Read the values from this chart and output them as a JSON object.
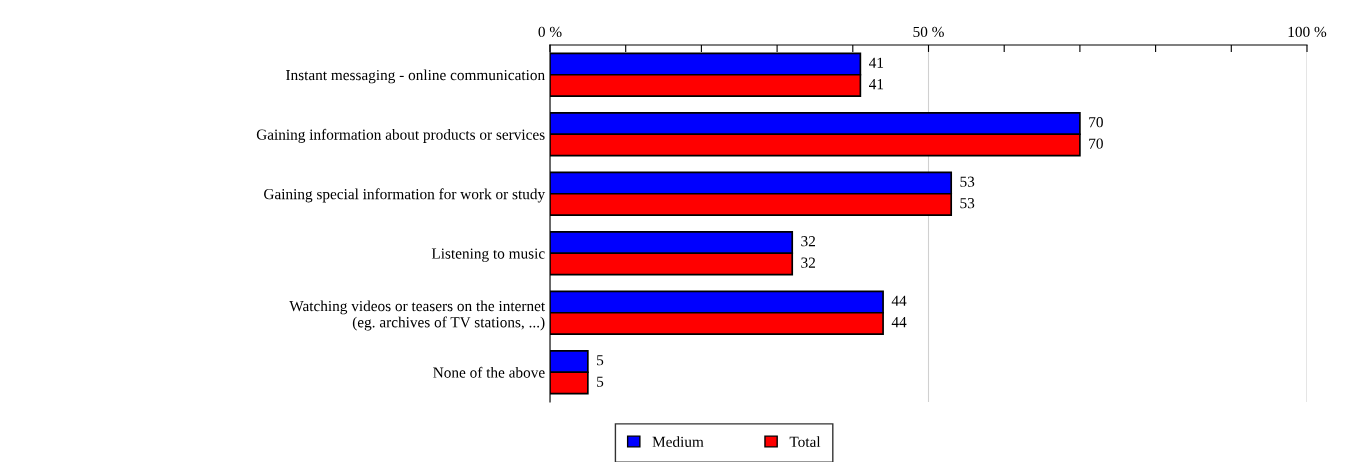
{
  "chart_data": {
    "type": "bar",
    "orientation": "horizontal",
    "categories": [
      "Instant messaging - online communication",
      "Gaining information about products or services",
      "Gaining special information for work or study",
      "Listening to music",
      "Watching videos or teasers on the internet\n(eg. archives of TV stations, ...)",
      "None of the above"
    ],
    "series": [
      {
        "name": "Medium",
        "color": "#0000ff",
        "values": [
          41,
          70,
          53,
          32,
          44,
          5
        ]
      },
      {
        "name": "Total",
        "color": "#ff0000",
        "values": [
          41,
          70,
          53,
          32,
          44,
          5
        ]
      }
    ],
    "xlim": [
      0,
      100
    ],
    "xticks": [
      {
        "value": 0,
        "label": "0 %"
      },
      {
        "value": 10,
        "label": null
      },
      {
        "value": 20,
        "label": null
      },
      {
        "value": 30,
        "label": null
      },
      {
        "value": 40,
        "label": null
      },
      {
        "value": 50,
        "label": "50 %"
      },
      {
        "value": 60,
        "label": null
      },
      {
        "value": 70,
        "label": null
      },
      {
        "value": 80,
        "label": null
      },
      {
        "value": 90,
        "label": null
      },
      {
        "value": 100,
        "label": "100 %"
      }
    ],
    "grid": "x",
    "data_labels": true,
    "legend": "bottom"
  }
}
